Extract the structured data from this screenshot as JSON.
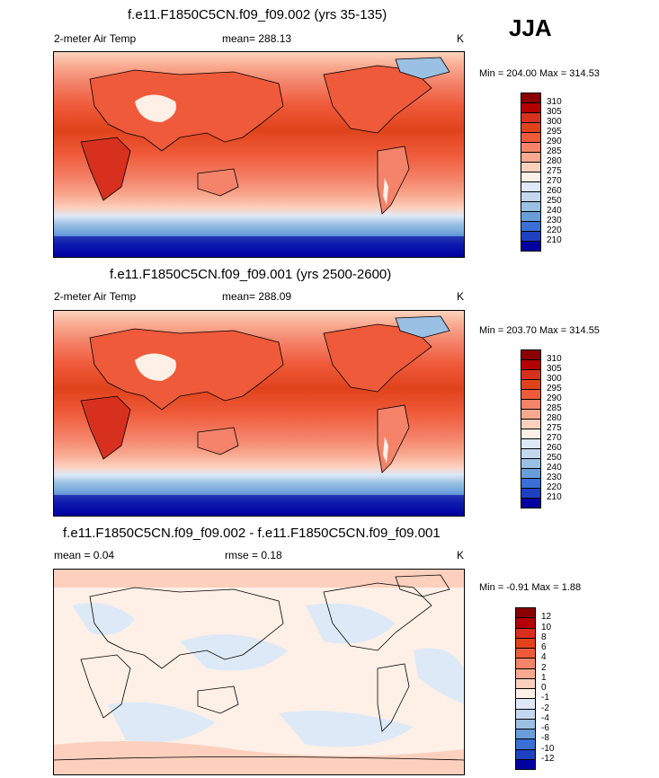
{
  "season_label": "JJA",
  "colors": {
    "warm": [
      "#fee0d2",
      "#fcbba1",
      "#fc9272",
      "#fb6a4a",
      "#ef3b2c",
      "#e0431b",
      "#d7301f",
      "#b30000",
      "#7f0000"
    ],
    "cool": [
      "#deebf7",
      "#c6dbef",
      "#9ecae1",
      "#6baed6",
      "#4292c6",
      "#2171b5",
      "#08519c",
      "#08306b",
      "#00007f"
    ],
    "land_line": "#000000"
  },
  "panels": [
    {
      "title": "f.e11.F1850C5CN.f09_f09.002 (yrs 35-135)",
      "left_label": "2-meter Air Temp",
      "center_label": "mean= 288.13",
      "units": "K",
      "minmax": "Min = 204.00 Max = 314.53",
      "colorbar": {
        "levels": [
          "310",
          "305",
          "300",
          "295",
          "290",
          "285",
          "280",
          "275",
          "270",
          "260",
          "250",
          "240",
          "230",
          "220",
          "210"
        ],
        "colors": [
          "#8b0000",
          "#b30000",
          "#d7301f",
          "#e0431b",
          "#ef5a3a",
          "#f4836a",
          "#f9a98f",
          "#fdd0bd",
          "#fef0e6",
          "#dde9f7",
          "#c3d8ef",
          "#9ac1e3",
          "#6a9edb",
          "#3b6fd6",
          "#1f40c2",
          "#0000a0"
        ]
      }
    },
    {
      "title": "f.e11.F1850C5CN.f09_f09.001 (yrs 2500-2600)",
      "left_label": "2-meter Air Temp",
      "center_label": "mean= 288.09",
      "units": "K",
      "minmax": "Min = 203.70 Max = 314.55",
      "colorbar": {
        "levels": [
          "310",
          "305",
          "300",
          "295",
          "290",
          "285",
          "280",
          "275",
          "270",
          "260",
          "250",
          "240",
          "230",
          "220",
          "210"
        ],
        "colors": [
          "#8b0000",
          "#b30000",
          "#d7301f",
          "#e0431b",
          "#ef5a3a",
          "#f4836a",
          "#f9a98f",
          "#fdd0bd",
          "#fef0e6",
          "#dde9f7",
          "#c3d8ef",
          "#9ac1e3",
          "#6a9edb",
          "#3b6fd6",
          "#1f40c2",
          "#0000a0"
        ]
      }
    },
    {
      "title": "f.e11.F1850C5CN.f09_f09.002 - f.e11.F1850C5CN.f09_f09.001",
      "left_label": "mean =   0.04",
      "center_label": "rmse =   0.18",
      "units": "K",
      "minmax": "Min =  -0.91 Max =   1.88",
      "colorbar": {
        "levels": [
          "12",
          "10",
          "8",
          "6",
          "4",
          "2",
          "1",
          "0",
          "-1",
          "-2",
          "-4",
          "-6",
          "-8",
          "-10",
          "-12"
        ],
        "colors": [
          "#8b0000",
          "#b30000",
          "#d7301f",
          "#e0431b",
          "#ef5a3a",
          "#f4836a",
          "#f9a98f",
          "#fdd0bd",
          "#fef0e6",
          "#dde9f7",
          "#c3d8ef",
          "#9ac1e3",
          "#6a9edb",
          "#3b6fd6",
          "#1f40c2",
          "#0000a0"
        ]
      }
    }
  ]
}
